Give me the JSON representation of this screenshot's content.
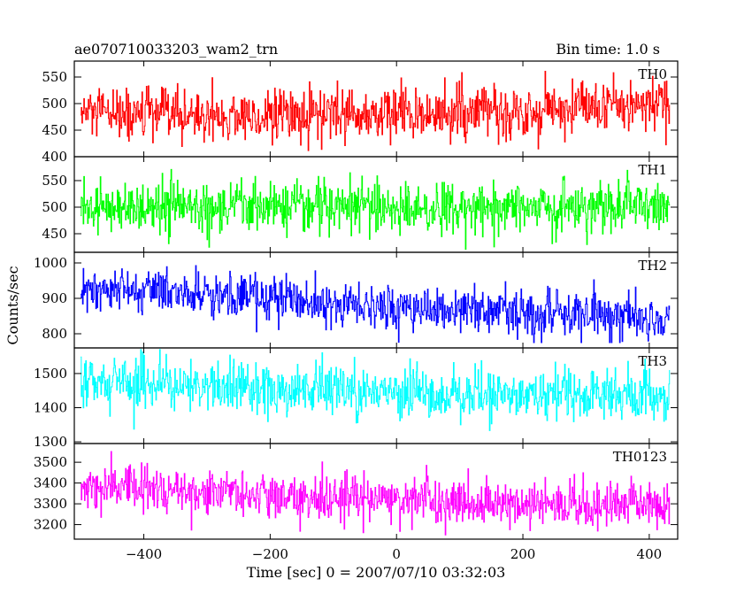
{
  "header": {
    "file_label": "ae070710033203_wam2_trn",
    "bin_time": "Bin time: 1.0 s"
  },
  "chart_data": {
    "type": "line",
    "title": "ae070710033203_wam2_trn",
    "subtitle": "Bin time: 1.0 s",
    "xlabel": "Time [sec] 0 = 2007/07/10 03:32:03",
    "ylabel": "Counts/sec",
    "xlim": [
      -510,
      445
    ],
    "xticks": [
      -400,
      -200,
      0,
      200,
      400
    ],
    "x_range_data": [
      -500,
      432
    ],
    "grid": false,
    "series": [
      {
        "name": "TH0",
        "color": "#ff0000",
        "ylim": [
          400,
          580
        ],
        "yticks": [
          400,
          450,
          500,
          550
        ],
        "trend": [
          [
            -500,
            480
          ],
          [
            -200,
            475
          ],
          [
            0,
            480
          ],
          [
            200,
            485
          ],
          [
            432,
            500
          ]
        ],
        "noise": 25,
        "extreme": [
          395,
          580
        ]
      },
      {
        "name": "TH1",
        "color": "#00ff00",
        "ylim": [
          415,
          595
        ],
        "yticks": [
          450,
          500,
          550
        ],
        "trend": [
          [
            -500,
            500
          ],
          [
            0,
            500
          ],
          [
            432,
            502
          ]
        ],
        "noise": 25,
        "extreme": [
          420,
          585
        ]
      },
      {
        "name": "TH2",
        "color": "#0000ff",
        "ylim": [
          760,
          1030
        ],
        "yticks": [
          800,
          900,
          1000
        ],
        "trend": [
          [
            -500,
            925
          ],
          [
            -250,
            905
          ],
          [
            0,
            875
          ],
          [
            250,
            860
          ],
          [
            432,
            850
          ]
        ],
        "noise": 33,
        "extreme": [
          775,
          1030
        ]
      },
      {
        "name": "TH3",
        "color": "#00ffff",
        "ylim": [
          1295,
          1575
        ],
        "yticks": [
          1300,
          1400,
          1500
        ],
        "trend": [
          [
            -500,
            1475
          ],
          [
            -250,
            1460
          ],
          [
            0,
            1440
          ],
          [
            250,
            1435
          ],
          [
            432,
            1440
          ]
        ],
        "noise": 38,
        "extreme": [
          1320,
          1570
        ]
      },
      {
        "name": "TH0123",
        "color": "#ff00ff",
        "ylim": [
          3130,
          3590
        ],
        "yticks": [
          3200,
          3300,
          3400,
          3500
        ],
        "trend": [
          [
            -500,
            3380
          ],
          [
            -250,
            3345
          ],
          [
            0,
            3320
          ],
          [
            250,
            3290
          ],
          [
            432,
            3300
          ]
        ],
        "noise": 55,
        "extreme": [
          3150,
          3560
        ]
      }
    ]
  }
}
